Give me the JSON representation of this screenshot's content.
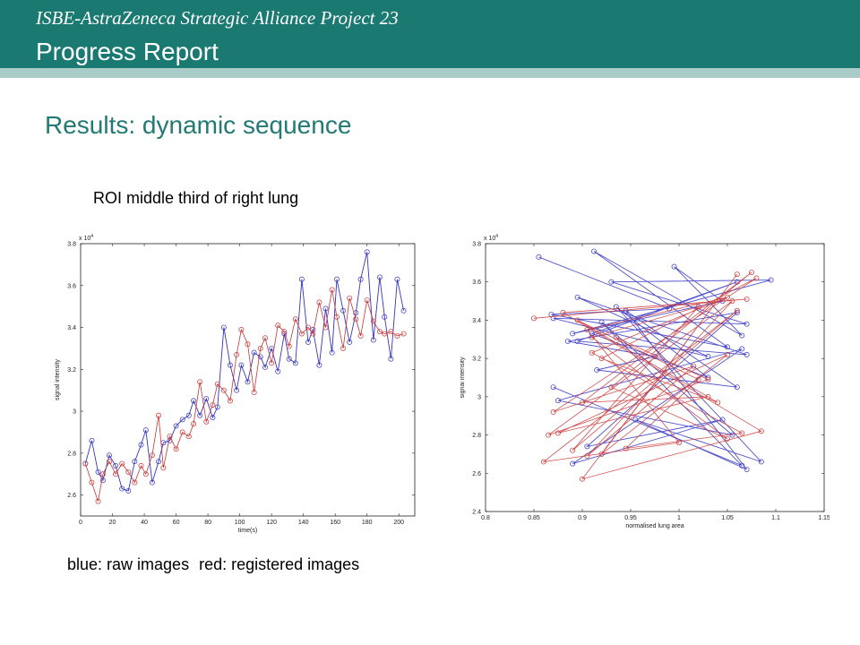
{
  "header": {
    "project": "ISBE-AstraZeneca Strategic Alliance Project 23",
    "report": "Progress Report"
  },
  "slide": {
    "title": "Results: dynamic sequence",
    "roi_label": "ROI middle third of right lung",
    "caption_blue": "blue: raw images",
    "caption_red": "red: registered images"
  },
  "colors": {
    "banner": "#1a7a72",
    "banner_strip": "#a9ccc8",
    "title": "#227a72",
    "raw": "#3434c4",
    "registered": "#cc3333"
  },
  "chart_data": [
    {
      "type": "line",
      "xlabel": "time(s)",
      "ylabel": "signal intensity",
      "y_multiplier": "x 10^4",
      "xlim": [
        0,
        210
      ],
      "ylim": [
        2.5,
        3.8
      ],
      "xticks": [
        "0",
        "20",
        "40",
        "60",
        "80",
        "100",
        "120",
        "140",
        "160",
        "180",
        "200"
      ],
      "yticks": [
        "2.6",
        "2.8",
        "3",
        "3.2",
        "3.4",
        "3.6",
        "3.8"
      ],
      "x": [
        3,
        7,
        11,
        14,
        18,
        22,
        26,
        30,
        34,
        38,
        41,
        45,
        49,
        52,
        56,
        60,
        64,
        68,
        71,
        75,
        79,
        83,
        86,
        90,
        94,
        98,
        101,
        105,
        109,
        113,
        116,
        120,
        124,
        128,
        131,
        135,
        139,
        143,
        146,
        150,
        154,
        158,
        161,
        165,
        169,
        173,
        176,
        180,
        184,
        188,
        191,
        195,
        199,
        203
      ],
      "series": [
        {
          "values": [
            2.75,
            2.86,
            2.71,
            2.67,
            2.79,
            2.74,
            2.63,
            2.62,
            2.76,
            2.84,
            2.91,
            2.66,
            2.76,
            2.85,
            2.86,
            2.93,
            2.96,
            2.98,
            3.05,
            2.98,
            3.06,
            2.97,
            3.02,
            3.4,
            3.22,
            3.1,
            3.22,
            3.14,
            3.28,
            3.26,
            3.21,
            3.3,
            3.19,
            3.37,
            3.25,
            3.23,
            3.63,
            3.33,
            3.39,
            3.22,
            3.49,
            3.28,
            3.63,
            3.48,
            3.33,
            3.47,
            3.63,
            3.76,
            3.34,
            3.64,
            3.45,
            3.25,
            3.63,
            3.48
          ]
        },
        {
          "values": [
            2.75,
            2.66,
            2.57,
            2.7,
            2.76,
            2.7,
            2.75,
            2.71,
            2.66,
            2.74,
            2.7,
            2.79,
            2.98,
            2.73,
            2.88,
            2.82,
            2.9,
            2.88,
            2.94,
            3.14,
            2.95,
            3.03,
            3.13,
            3.1,
            3.05,
            3.27,
            3.39,
            3.32,
            3.09,
            3.3,
            3.35,
            3.23,
            3.41,
            3.38,
            3.31,
            3.44,
            3.37,
            3.4,
            3.37,
            3.52,
            3.4,
            3.58,
            3.45,
            3.3,
            3.54,
            3.44,
            3.36,
            3.53,
            3.43,
            3.38,
            3.37,
            3.38,
            3.36,
            3.37
          ]
        }
      ]
    },
    {
      "type": "line",
      "xlabel": "normalised lung area",
      "ylabel": "signal intensity",
      "y_multiplier": "x 10^4",
      "xlim": [
        0.8,
        1.15
      ],
      "ylim": [
        2.4,
        3.8
      ],
      "xticks": [
        "0.8",
        "0.85",
        "0.9",
        "0.95",
        "1",
        "1.05",
        "1.1",
        "1.15"
      ],
      "yticks": [
        "2.4",
        "2.6",
        "2.8",
        "3",
        "3.2",
        "3.4",
        "3.6",
        "3.8"
      ],
      "series": [
        {
          "x": [
            0.855,
            0.99,
            0.868,
            1.05,
            0.912,
            1.065,
            0.995,
            1.045,
            0.89,
            1.095,
            0.93,
            1.07,
            0.87,
            1.03,
            0.895,
            1.07,
            0.895,
            1.06,
            0.91,
            1.03,
            0.935,
            1.085,
            0.955,
            1.07,
            0.945,
            1.06,
            0.915,
            0.975,
            0.885,
            1.06,
            0.905,
            1.045,
            0.89,
            1.065,
            0.875,
            1.055,
            0.92,
            1.065,
            0.87
          ],
          "y": [
            3.73,
            3.46,
            3.43,
            3.26,
            3.76,
            3.32,
            3.68,
            3.5,
            3.33,
            3.61,
            3.6,
            3.38,
            3.41,
            3.21,
            3.52,
            3.22,
            3.29,
            3.6,
            3.33,
            3.1,
            3.47,
            2.66,
            2.88,
            2.62,
            3.45,
            3.05,
            3.14,
            3.21,
            3.29,
            3.44,
            2.74,
            2.88,
            2.65,
            3.25,
            2.98,
            2.8,
            3.39,
            2.64,
            3.05
          ]
        },
        {
          "x": [
            0.85,
            1.07,
            0.88,
            1.085,
            0.9,
            1.06,
            0.92,
            1.05,
            0.875,
            1.03,
            0.9,
            1.075,
            0.93,
            1.05,
            0.91,
            1.02,
            0.89,
            1.06,
            0.86,
            1.0,
            0.905,
            1.05,
            0.91,
            1.065,
            0.945,
            1.02,
            0.895,
            1.04,
            0.92,
            1.08,
            0.87,
            1.015,
            0.905,
            1.055,
            0.865,
            1.03,
            0.935
          ],
          "y": [
            3.41,
            3.51,
            3.44,
            2.82,
            2.57,
            3.64,
            2.7,
            3.22,
            2.81,
            3.0,
            2.97,
            3.65,
            3.05,
            2.78,
            3.31,
            3.47,
            2.72,
            3.45,
            2.66,
            2.76,
            3.35,
            3.52,
            3.23,
            2.81,
            2.73,
            3.09,
            3.4,
            2.97,
            3.2,
            3.62,
            2.92,
            3.16,
            2.69,
            3.5,
            2.8,
            3.09,
            3.31
          ]
        }
      ]
    }
  ]
}
